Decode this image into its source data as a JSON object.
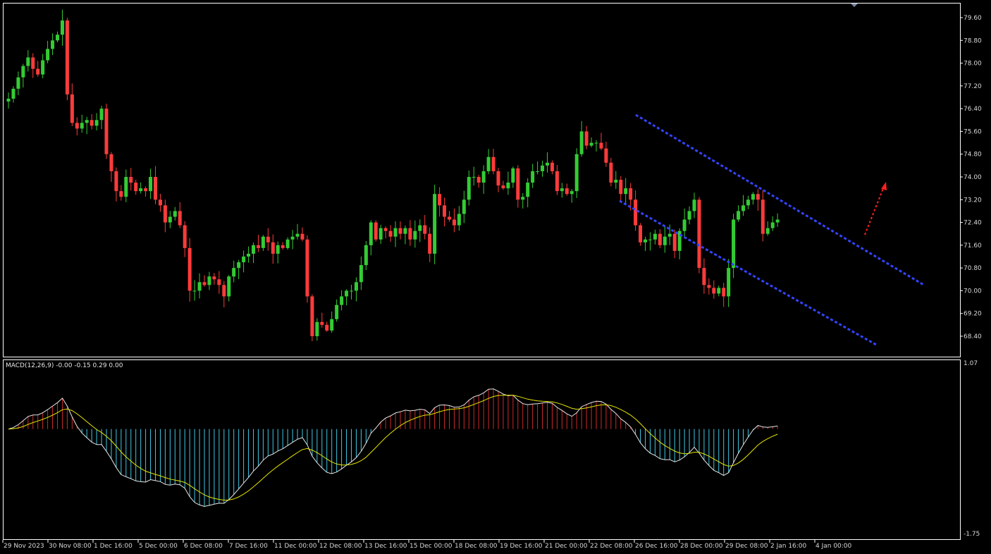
{
  "chart_data": {
    "type": "candlestick",
    "colors": {
      "up": "#33cc33",
      "down": "#ff3b3b",
      "background": "#000000",
      "border": "#ffffff",
      "channel": "#3344ff",
      "arrow": "#ff2020",
      "macd_hist_pos": "#cc2a2a",
      "macd_hist_neg": "#3fc8e6",
      "macd_line": "#e6e6e6",
      "signal_line": "#e6e600"
    },
    "price_axis": {
      "ticks": [
        "79.60",
        "78.80",
        "78.00",
        "77.20",
        "76.40",
        "75.60",
        "74.80",
        "74.00",
        "73.20",
        "72.40",
        "71.60",
        "70.80",
        "70.00",
        "69.20",
        "68.40"
      ],
      "range": [
        67.8,
        80.15
      ]
    },
    "macd_axis": {
      "ticks": [
        "1.07",
        "-1.75"
      ]
    },
    "macd_label": "MACD(12,26,9) -0.00 -0.15 0.29 0.00",
    "time_labels": [
      "29 Nov 2023",
      "30 Nov 08:00",
      "1 Dec 16:00",
      "5 Dec 00:00",
      "6 Dec 08:00",
      "7 Dec 16:00",
      "11 Dec 00:00",
      "12 Dec 08:00",
      "13 Dec 16:00",
      "15 Dec 00:00",
      "18 Dec 08:00",
      "19 Dec 16:00",
      "21 Dec 00:00",
      "22 Dec 08:00",
      "26 Dec 16:00",
      "28 Dec 00:00",
      "29 Dec 08:00",
      "2 Jan 16:00",
      "4 Jan 00:00"
    ],
    "candles_close": [
      76.75,
      77.1,
      77.5,
      77.9,
      78.2,
      77.8,
      77.6,
      78.1,
      78.5,
      78.8,
      79.0,
      79.5,
      76.9,
      75.9,
      75.7,
      75.9,
      76.0,
      75.8,
      76.0,
      76.4,
      74.8,
      74.2,
      73.5,
      73.3,
      74.0,
      73.8,
      73.5,
      73.6,
      73.5,
      74.0,
      73.2,
      73.0,
      72.4,
      72.6,
      72.8,
      72.3,
      71.5,
      70.0,
      70.0,
      70.3,
      70.2,
      70.5,
      70.4,
      70.2,
      69.8,
      70.5,
      70.8,
      71.0,
      71.2,
      71.3,
      71.6,
      71.5,
      71.9,
      71.7,
      71.3,
      71.6,
      71.5,
      71.8,
      71.9,
      72.0,
      71.8,
      69.8,
      68.4,
      68.9,
      68.8,
      68.6,
      69.0,
      69.5,
      69.8,
      70.0,
      70.0,
      70.3,
      70.9,
      71.6,
      72.4,
      71.8,
      72.2,
      72.1,
      71.9,
      72.2,
      72.0,
      72.2,
      71.8,
      72.1,
      72.3,
      72.0,
      71.3,
      73.4,
      73.0,
      72.6,
      72.5,
      72.3,
      72.7,
      73.2,
      74.0,
      74.0,
      73.8,
      74.2,
      74.7,
      74.2,
      73.7,
      73.6,
      73.8,
      74.3,
      73.2,
      73.3,
      73.8,
      74.2,
      74.2,
      74.4,
      74.5,
      74.2,
      73.5,
      73.6,
      73.4,
      73.5,
      74.8,
      75.6,
      75.1,
      75.2,
      75.2,
      75.0,
      74.5,
      73.8,
      73.9,
      73.4,
      73.6,
      73.2,
      72.3,
      71.7,
      71.8,
      71.8,
      72.0,
      71.6,
      71.9,
      72.0,
      71.4,
      72.1,
      72.5,
      72.8,
      73.2,
      70.8,
      70.2,
      70.1,
      69.9,
      70.1,
      69.8,
      70.8,
      72.5,
      72.8,
      73.0,
      73.2,
      73.4,
      73.2,
      72.0,
      72.2,
      72.4,
      72.5
    ]
  }
}
